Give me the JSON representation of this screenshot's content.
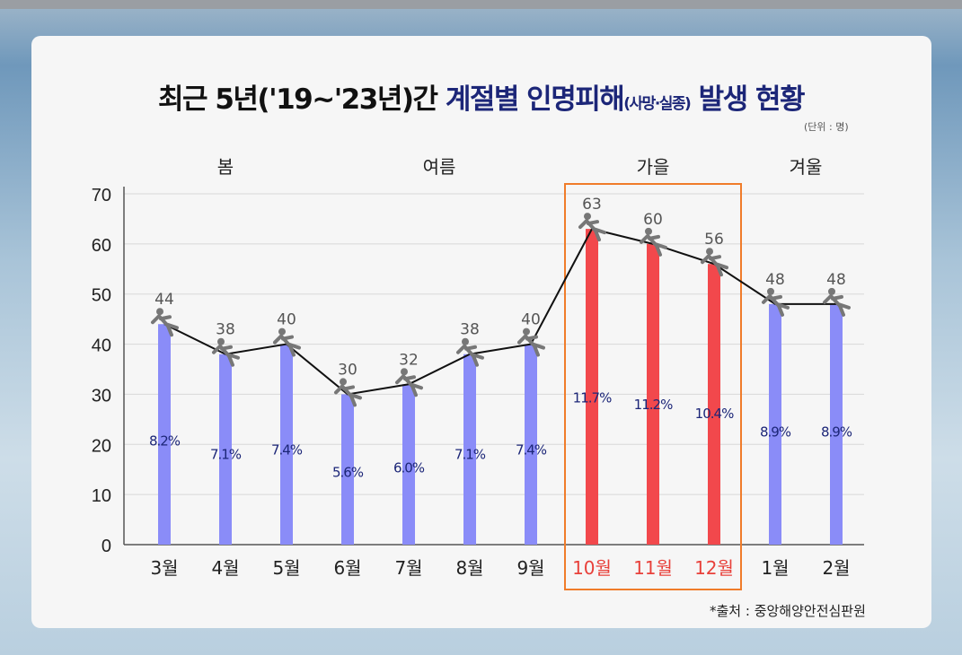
{
  "title": {
    "part1": "최근 5년('19~'23년)간 ",
    "part2": "계절별 인명피해",
    "part3": "(사망·실종)",
    "part4": " 발생 현황"
  },
  "unit": "(단위 : 명)",
  "source": "*출처 : 중앙해양안전심판원",
  "colors": {
    "normal_bar": "#8a8cf8",
    "highlight_bar": "#f2484c",
    "highlight_box": "#f07c2a",
    "line": "#111111",
    "percent_text": "#1c2678",
    "highlight_label": "#e8403a"
  },
  "chart_data": {
    "type": "bar",
    "title": "최근 5년('19~'23년)간 계절별 인명피해(사망·실종) 발생 현황",
    "categories": [
      "3월",
      "4월",
      "5월",
      "6월",
      "7월",
      "8월",
      "9월",
      "10월",
      "11월",
      "12월",
      "1월",
      "2월"
    ],
    "values": [
      44,
      38,
      40,
      30,
      32,
      38,
      40,
      63,
      60,
      56,
      48,
      48
    ],
    "percent_labels": [
      "8.2%",
      "7.1%",
      "7.4%",
      "5.6%",
      "6.0%",
      "7.1%",
      "7.4%",
      "11.7%",
      "11.2%",
      "10.4%",
      "8.9%",
      "8.9%"
    ],
    "highlighted": [
      "10월",
      "11월",
      "12월"
    ],
    "seasons": [
      {
        "name": "봄",
        "months": [
          "3월",
          "4월",
          "5월"
        ]
      },
      {
        "name": "여름",
        "months": [
          "6월",
          "7월",
          "8월",
          "9월"
        ]
      },
      {
        "name": "가을",
        "months": [
          "10월",
          "11월",
          "12월"
        ]
      },
      {
        "name": "겨울",
        "months": [
          "1월",
          "2월"
        ]
      }
    ],
    "overlay_line": true,
    "marker_icon": "falling-person-icon",
    "yticks": [
      0,
      10,
      20,
      30,
      40,
      50,
      60,
      70
    ],
    "ylim": [
      0,
      70
    ],
    "grid": true,
    "xlabel": "",
    "ylabel": ""
  }
}
